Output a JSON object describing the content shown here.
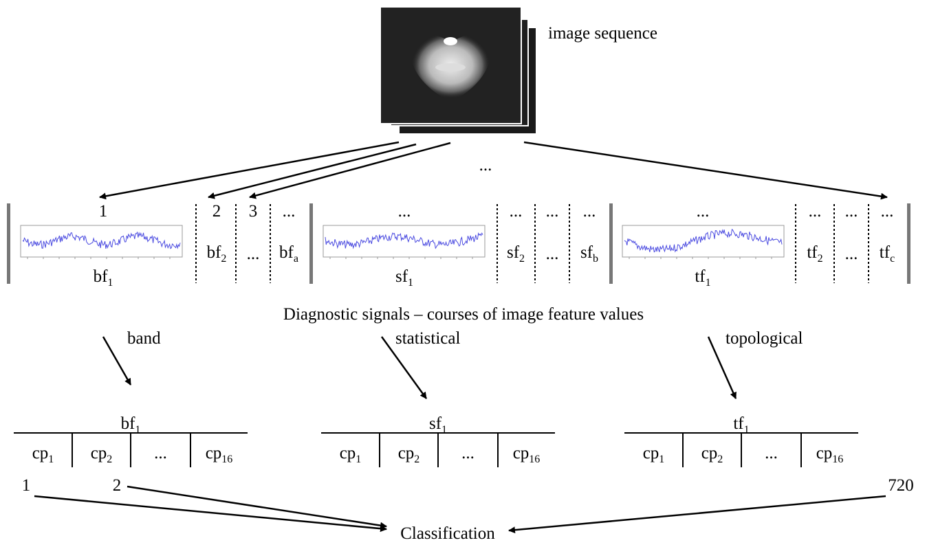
{
  "image_label": "image sequence",
  "top_ellipsis": "...",
  "signal_groups": [
    {
      "headers": [
        "1",
        "2",
        "3",
        "..."
      ],
      "signals": [
        {
          "base": "bf",
          "sub": "1"
        },
        {
          "base": "bf",
          "sub": "2"
        },
        {
          "base": "..."
        },
        {
          "base": "bf",
          "sub": "a"
        }
      ]
    },
    {
      "headers": [
        "...",
        "...",
        "...",
        "..."
      ],
      "signals": [
        {
          "base": "sf",
          "sub": "1"
        },
        {
          "base": "sf",
          "sub": "2"
        },
        {
          "base": "..."
        },
        {
          "base": "sf",
          "sub": "b"
        }
      ]
    },
    {
      "headers": [
        "...",
        "...",
        "...",
        "..."
      ],
      "signals": [
        {
          "base": "tf",
          "sub": "1"
        },
        {
          "base": "tf",
          "sub": "2"
        },
        {
          "base": "..."
        },
        {
          "base": "tf",
          "sub": "c"
        }
      ]
    }
  ],
  "caption": "Diagnostic signals – courses of image feature values",
  "feature_types": [
    "band",
    "statistical",
    "topological"
  ],
  "tables": [
    {
      "header": {
        "base": "bf",
        "sub": "1"
      },
      "cells": [
        {
          "base": "cp",
          "sub": "1"
        },
        {
          "base": "cp",
          "sub": "2"
        },
        {
          "base": "..."
        },
        {
          "base": "cp",
          "sub": "16"
        }
      ]
    },
    {
      "header": {
        "base": "sf",
        "sub": "1"
      },
      "cells": [
        {
          "base": "cp",
          "sub": "1"
        },
        {
          "base": "cp",
          "sub": "2"
        },
        {
          "base": "..."
        },
        {
          "base": "cp",
          "sub": "16"
        }
      ]
    },
    {
      "header": {
        "base": "tf",
        "sub": "1"
      },
      "cells": [
        {
          "base": "cp",
          "sub": "1"
        },
        {
          "base": "cp",
          "sub": "2"
        },
        {
          "base": "..."
        },
        {
          "base": "cp",
          "sub": "16"
        }
      ]
    }
  ],
  "indices": [
    "1",
    "2",
    "720"
  ],
  "classification": "Classification"
}
